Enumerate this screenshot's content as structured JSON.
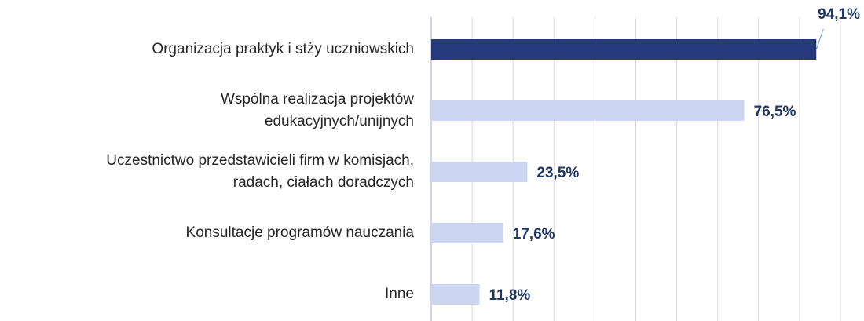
{
  "chart_data": {
    "type": "hbar",
    "categories": [
      [
        "Organizacja praktyk i stży uczniowskich"
      ],
      [
        "Wspólna realizacja projektów",
        "edukacyjnych/unijnych"
      ],
      [
        "Uczestnictwo przedstawicieli firm w komisjach,",
        "radach, ciałach doradczych"
      ],
      [
        "Konsultacje programów nauczania"
      ],
      [
        "Inne"
      ]
    ],
    "values": [
      94.1,
      76.5,
      23.5,
      17.6,
      11.8
    ],
    "value_labels": [
      "94,1%",
      "76,5%",
      "23,5%",
      "17,6%",
      "11,8%"
    ],
    "colors": [
      "#253a7a",
      "#cdd6f0",
      "#cdd6f0",
      "#cdd6f0",
      "#cdd6f0"
    ],
    "xlim": [
      0,
      100
    ],
    "xticks": [
      0,
      10,
      20,
      30,
      40,
      50,
      60,
      70,
      80,
      90,
      100
    ],
    "grid": true
  }
}
